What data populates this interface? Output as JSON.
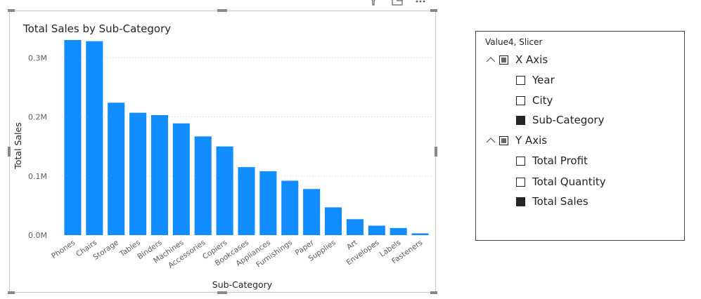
{
  "visual_toolbar": {
    "filter_icon": "filter-icon",
    "focus_icon": "focus-mode-icon",
    "more_icon": "more-options-icon"
  },
  "chart_data": {
    "type": "bar",
    "title": "Total Sales by Sub-Category",
    "xlabel": "Sub-Category",
    "ylabel": "Total Sales",
    "categories": [
      "Phones",
      "Chairs",
      "Storage",
      "Tables",
      "Binders",
      "Machines",
      "Accessories",
      "Copiers",
      "Bookcases",
      "Appliances",
      "Furnishings",
      "Paper",
      "Supplies",
      "Art",
      "Envelopes",
      "Labels",
      "Fasteners"
    ],
    "values": [
      0.33,
      0.328,
      0.224,
      0.207,
      0.203,
      0.189,
      0.167,
      0.15,
      0.115,
      0.108,
      0.092,
      0.078,
      0.047,
      0.027,
      0.016,
      0.012,
      0.003
    ],
    "ylim": [
      0,
      0.33
    ],
    "yticks": [
      0,
      0.1,
      0.2,
      0.3
    ],
    "ytick_labels": [
      "0.0M",
      "0.1M",
      "0.2M",
      "0.3M"
    ],
    "bar_color": "#118DFF",
    "grid": true
  },
  "slicer": {
    "header": "Value4, Slicer",
    "groups": [
      {
        "label": "X Axis",
        "state": "partial",
        "items": [
          {
            "label": "Year",
            "checked": false
          },
          {
            "label": "City",
            "checked": false
          },
          {
            "label": "Sub-Category",
            "checked": true
          }
        ]
      },
      {
        "label": "Y Axis",
        "state": "partial",
        "items": [
          {
            "label": "Total Profit",
            "checked": false
          },
          {
            "label": "Total Quantity",
            "checked": false
          },
          {
            "label": "Total Sales",
            "checked": true
          }
        ]
      }
    ]
  }
}
